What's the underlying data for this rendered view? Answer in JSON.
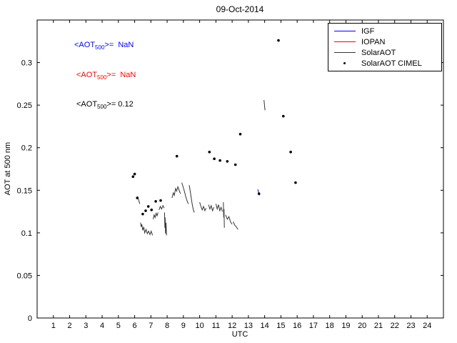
{
  "figure": {
    "title": "09-Oct-2014",
    "xlabel": "UTC",
    "ylabel": "AOT at 500 nm"
  },
  "annotations": [
    {
      "prefix": "<AOT",
      "sub": "500",
      "suffix": ">=  NaN",
      "color": "#0000ff"
    },
    {
      "prefix": "<AOT",
      "sub": "500",
      "suffix": ">=  NaN",
      "color": "#ff0000"
    },
    {
      "prefix": "<AOT",
      "sub": "500",
      "suffix": ">= 0.12",
      "color": "#000000"
    }
  ],
  "chart_data": {
    "type": "line",
    "title": "09-Oct-2014",
    "xlabel": "UTC",
    "ylabel": "AOT at 500 nm",
    "xlim": [
      0,
      25
    ],
    "ylim": [
      0,
      0.35
    ],
    "xticks": [
      1,
      2,
      3,
      4,
      5,
      6,
      7,
      8,
      9,
      10,
      11,
      12,
      13,
      14,
      15,
      16,
      17,
      18,
      19,
      20,
      21,
      22,
      23,
      24
    ],
    "yticks": [
      [
        0,
        "0"
      ],
      [
        0.05,
        "0.05"
      ],
      [
        0.1,
        "0.1"
      ],
      [
        0.15,
        "0.15"
      ],
      [
        0.2,
        "0.2"
      ],
      [
        0.25,
        "0.25"
      ],
      [
        0.3,
        "0.3"
      ]
    ],
    "grid": false,
    "legend_position": "upper right",
    "series": [
      {
        "name": "IGF",
        "color": "#0000ff",
        "segments": [
          [
            [
              13.58,
              0.151
            ],
            [
              13.63,
              0.147
            ],
            [
              13.68,
              0.144
            ]
          ]
        ]
      },
      {
        "name": "IOPAN",
        "color": "#ff0000",
        "segments": []
      },
      {
        "name": "SolarAOT",
        "color": "#333333",
        "segments": [
          [
            [
              6.18,
              0.143
            ],
            [
              6.22,
              0.14
            ],
            [
              6.27,
              0.137
            ],
            [
              6.32,
              0.134
            ]
          ],
          [
            [
              6.36,
              0.112
            ],
            [
              6.4,
              0.107
            ],
            [
              6.44,
              0.11
            ],
            [
              6.5,
              0.103
            ],
            [
              6.56,
              0.107
            ],
            [
              6.62,
              0.1
            ],
            [
              6.7,
              0.104
            ],
            [
              6.78,
              0.099
            ],
            [
              6.86,
              0.102
            ],
            [
              6.94,
              0.098
            ],
            [
              7.02,
              0.102
            ],
            [
              7.1,
              0.097
            ]
          ],
          [
            [
              7.14,
              0.116
            ],
            [
              7.2,
              0.121
            ],
            [
              7.26,
              0.118
            ],
            [
              7.32,
              0.123
            ],
            [
              7.38,
              0.12
            ],
            [
              7.44,
              0.124
            ]
          ],
          [
            [
              7.5,
              0.127
            ],
            [
              7.58,
              0.131
            ],
            [
              7.66,
              0.128
            ],
            [
              7.74,
              0.132
            ],
            [
              7.82,
              0.129
            ]
          ],
          [
            [
              7.84,
              0.124
            ],
            [
              7.86,
              0.106
            ],
            [
              7.88,
              0.118
            ],
            [
              7.9,
              0.099
            ],
            [
              7.93,
              0.112
            ],
            [
              7.96,
              0.097
            ]
          ],
          [
            [
              8.3,
              0.141
            ],
            [
              8.38,
              0.147
            ],
            [
              8.44,
              0.144
            ],
            [
              8.52,
              0.152
            ],
            [
              8.58,
              0.149
            ],
            [
              8.66,
              0.154
            ],
            [
              8.74,
              0.15
            ],
            [
              8.82,
              0.146
            ]
          ],
          [
            [
              8.9,
              0.159
            ],
            [
              8.98,
              0.154
            ],
            [
              9.06,
              0.149
            ],
            [
              9.14,
              0.143
            ],
            [
              9.22,
              0.138
            ],
            [
              9.3,
              0.134
            ]
          ],
          [
            [
              9.36,
              0.156
            ],
            [
              9.42,
              0.149
            ],
            [
              9.48,
              0.141
            ],
            [
              9.54,
              0.134
            ],
            [
              9.6,
              0.128
            ],
            [
              9.66,
              0.124
            ]
          ],
          [
            [
              10.0,
              0.136
            ],
            [
              10.08,
              0.131
            ],
            [
              10.16,
              0.127
            ],
            [
              10.24,
              0.131
            ],
            [
              10.32,
              0.126
            ],
            [
              10.4,
              0.129
            ]
          ],
          [
            [
              10.55,
              0.133
            ],
            [
              10.63,
              0.128
            ],
            [
              10.71,
              0.132
            ],
            [
              10.79,
              0.126
            ],
            [
              10.87,
              0.13
            ]
          ],
          [
            [
              11.0,
              0.134
            ],
            [
              11.08,
              0.128
            ],
            [
              11.16,
              0.133
            ],
            [
              11.24,
              0.126
            ],
            [
              11.32,
              0.13
            ],
            [
              11.4,
              0.125
            ]
          ],
          [
            [
              11.46,
              0.136
            ],
            [
              11.48,
              0.118
            ],
            [
              11.5,
              0.128
            ],
            [
              11.52,
              0.106
            ]
          ],
          [
            [
              11.6,
              0.121
            ],
            [
              11.7,
              0.116
            ],
            [
              11.8,
              0.119
            ],
            [
              11.9,
              0.113
            ],
            [
              12.0,
              0.11
            ]
          ],
          [
            [
              12.06,
              0.113
            ],
            [
              12.16,
              0.109
            ],
            [
              12.26,
              0.107
            ],
            [
              12.36,
              0.104
            ]
          ],
          [
            [
              13.96,
              0.256
            ],
            [
              13.99,
              0.25
            ],
            [
              14.02,
              0.244
            ]
          ]
        ]
      },
      {
        "name": "SolarAOT CIMEL",
        "color": "#000000",
        "type": "scatter",
        "points": [
          [
            5.9,
            0.166
          ],
          [
            6.0,
            0.169
          ],
          [
            6.16,
            0.141
          ],
          [
            6.5,
            0.122
          ],
          [
            6.68,
            0.126
          ],
          [
            6.84,
            0.131
          ],
          [
            7.04,
            0.127
          ],
          [
            7.3,
            0.137
          ],
          [
            7.6,
            0.138
          ],
          [
            8.6,
            0.19
          ],
          [
            10.6,
            0.195
          ],
          [
            10.9,
            0.187
          ],
          [
            11.25,
            0.185
          ],
          [
            11.7,
            0.184
          ],
          [
            12.2,
            0.18
          ],
          [
            12.5,
            0.216
          ],
          [
            13.65,
            0.146
          ],
          [
            14.85,
            0.326
          ],
          [
            15.15,
            0.237
          ],
          [
            15.6,
            0.195
          ],
          [
            15.9,
            0.159
          ]
        ]
      }
    ]
  }
}
